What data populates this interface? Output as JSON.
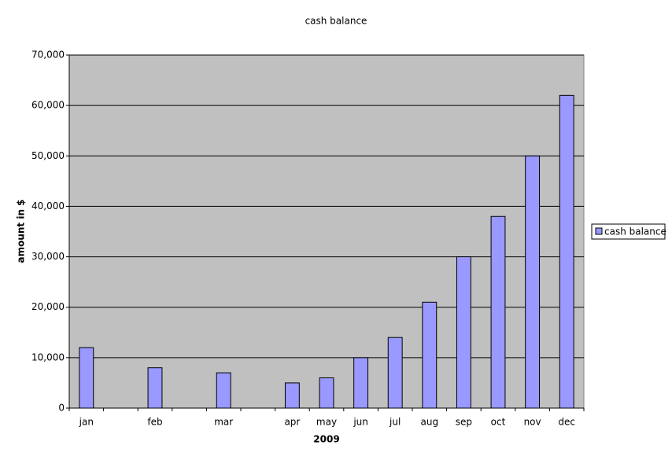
{
  "chart_data": {
    "type": "bar",
    "title": "cash balance",
    "x_label": "2009",
    "y_label": "amount in $",
    "categories": [
      "jan",
      null,
      "feb",
      null,
      "mar",
      null,
      "apr",
      "may",
      "jun",
      "jul",
      "aug",
      "sep",
      "oct",
      "nov",
      "dec"
    ],
    "series": [
      {
        "name": "cash balance",
        "color": "#9999ff",
        "values": [
          12000,
          null,
          8000,
          null,
          7000,
          null,
          5000,
          6000,
          10000,
          14000,
          21000,
          30000,
          38000,
          50000,
          62000
        ]
      }
    ],
    "ylim": [
      0,
      70000
    ],
    "yticks": [
      0,
      {
        "value": 10000,
        "label": "10,000"
      },
      {
        "value": 20000,
        "label": "20,000"
      },
      {
        "value": 30000,
        "label": "30,000"
      },
      {
        "value": 40000,
        "label": "40,000"
      },
      {
        "value": 50000,
        "label": "50,000"
      },
      {
        "value": 60000,
        "label": "60,000"
      },
      {
        "value": 70000,
        "label": "70,000"
      }
    ],
    "grid": true,
    "legend": "right"
  }
}
